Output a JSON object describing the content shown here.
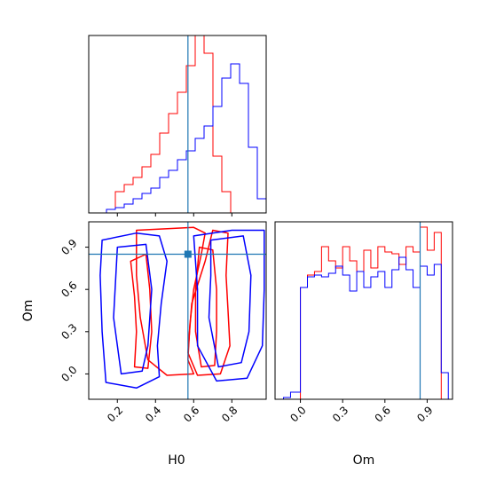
{
  "chart_data": {
    "type": "corner",
    "colors": {
      "sample_a": "#ff0000",
      "sample_b": "#0000ff",
      "truth": "#1f77b4",
      "axes": "#000000"
    },
    "parameters": [
      "H0",
      "Om"
    ],
    "truth": {
      "H0": 0.57,
      "Om": 0.85
    },
    "panels": [
      {
        "id": "hist-H0",
        "type": "step-histogram",
        "xlim": [
          0.05,
          0.98
        ],
        "ylim": [
          0,
          1
        ],
        "x_ticks": [
          0.2,
          0.4,
          0.6,
          0.8
        ],
        "x_tick_labels": [],
        "series": [
          {
            "color": "#ff0000",
            "edges": [
              0.05,
              0.0965,
              0.143,
              0.1895,
              0.236,
              0.2825,
              0.329,
              0.3755,
              0.422,
              0.4685,
              0.515,
              0.5615,
              0.608,
              0.6545,
              0.701,
              0.7475,
              0.794,
              0.8405,
              0.887,
              0.9335,
              0.98
            ],
            "heights": [
              0,
              0,
              0.02,
              0.12,
              0.16,
              0.2,
              0.26,
              0.33,
              0.45,
              0.56,
              0.68,
              0.83,
              1.0,
              0.9,
              0.32,
              0.12,
              0.0,
              0,
              0,
              0
            ]
          },
          {
            "color": "#0000ff",
            "edges": [
              0.05,
              0.0965,
              0.143,
              0.1895,
              0.236,
              0.2825,
              0.329,
              0.3755,
              0.422,
              0.4685,
              0.515,
              0.5615,
              0.608,
              0.6545,
              0.701,
              0.7475,
              0.794,
              0.8405,
              0.887,
              0.9335,
              0.98
            ],
            "heights": [
              0,
              0,
              0.02,
              0.03,
              0.05,
              0.08,
              0.11,
              0.14,
              0.2,
              0.24,
              0.3,
              0.35,
              0.42,
              0.49,
              0.6,
              0.76,
              0.84,
              0.73,
              0.37,
              0.08
            ]
          }
        ]
      },
      {
        "id": "contour-H0-Om",
        "type": "contour",
        "xlim": [
          0.05,
          0.98
        ],
        "ylim": [
          -0.18,
          1.08
        ],
        "x_ticks": [
          0.2,
          0.4,
          0.6,
          0.8
        ],
        "x_tick_labels": [
          "0.2",
          "0.4",
          "0.6",
          "0.8"
        ],
        "y_ticks": [
          0.0,
          0.3,
          0.6,
          0.9
        ],
        "y_tick_labels": [
          "0.0",
          "0.3",
          "0.6",
          "0.9"
        ],
        "xlabel": "H0",
        "ylabel": "Om",
        "series": [
          {
            "color": "#ff0000",
            "contours": [
              [
                [
                  0.3,
                  1.02
                ],
                [
                  0.6,
                  1.04
                ],
                [
                  0.66,
                  1.0
                ],
                [
                  0.64,
                  0.85
                ],
                [
                  0.6,
                  0.6
                ],
                [
                  0.58,
                  0.35
                ],
                [
                  0.57,
                  0.1
                ],
                [
                  0.6,
                  0.0
                ],
                [
                  0.46,
                  -0.01
                ],
                [
                  0.36,
                  0.1
                ],
                [
                  0.32,
                  0.4
                ],
                [
                  0.3,
                  0.7
                ]
              ],
              [
                [
                  0.7,
                  1.02
                ],
                [
                  0.78,
                  1.0
                ],
                [
                  0.77,
                  0.7
                ],
                [
                  0.78,
                  0.45
                ],
                [
                  0.79,
                  0.2
                ],
                [
                  0.74,
                  0.0
                ],
                [
                  0.62,
                  -0.01
                ],
                [
                  0.57,
                  0.15
                ],
                [
                  0.59,
                  0.5
                ],
                [
                  0.66,
                  0.8
                ]
              ],
              [
                [
                  0.27,
                  0.8
                ],
                [
                  0.29,
                  0.55
                ],
                [
                  0.3,
                  0.3
                ],
                [
                  0.29,
                  0.05
                ],
                [
                  0.36,
                  0.04
                ],
                [
                  0.38,
                  0.3
                ],
                [
                  0.37,
                  0.6
                ],
                [
                  0.35,
                  0.85
                ]
              ],
              [
                [
                  0.63,
                  0.9
                ],
                [
                  0.7,
                  0.88
                ],
                [
                  0.72,
                  0.6
                ],
                [
                  0.72,
                  0.3
                ],
                [
                  0.71,
                  0.06
                ],
                [
                  0.64,
                  0.05
                ],
                [
                  0.61,
                  0.3
                ],
                [
                  0.61,
                  0.6
                ]
              ]
            ]
          },
          {
            "color": "#0000ff",
            "contours": [
              [
                [
                  0.12,
                  0.95
                ],
                [
                  0.3,
                  1.0
                ],
                [
                  0.42,
                  0.98
                ],
                [
                  0.46,
                  0.8
                ],
                [
                  0.43,
                  0.5
                ],
                [
                  0.41,
                  0.2
                ],
                [
                  0.42,
                  -0.02
                ],
                [
                  0.3,
                  -0.1
                ],
                [
                  0.14,
                  -0.06
                ],
                [
                  0.12,
                  0.3
                ],
                [
                  0.11,
                  0.7
                ]
              ],
              [
                [
                  0.6,
                  0.98
                ],
                [
                  0.8,
                  1.02
                ],
                [
                  0.97,
                  1.02
                ],
                [
                  0.97,
                  0.6
                ],
                [
                  0.96,
                  0.2
                ],
                [
                  0.88,
                  -0.03
                ],
                [
                  0.72,
                  -0.05
                ],
                [
                  0.62,
                  0.2
                ],
                [
                  0.62,
                  0.6
                ]
              ],
              [
                [
                  0.2,
                  0.9
                ],
                [
                  0.35,
                  0.92
                ],
                [
                  0.38,
                  0.6
                ],
                [
                  0.36,
                  0.2
                ],
                [
                  0.33,
                  0.02
                ],
                [
                  0.22,
                  0.0
                ],
                [
                  0.18,
                  0.4
                ]
              ],
              [
                [
                  0.69,
                  0.95
                ],
                [
                  0.86,
                  0.98
                ],
                [
                  0.9,
                  0.7
                ],
                [
                  0.89,
                  0.3
                ],
                [
                  0.85,
                  0.08
                ],
                [
                  0.73,
                  0.05
                ],
                [
                  0.68,
                  0.4
                ],
                [
                  0.69,
                  0.7
                ]
              ]
            ]
          }
        ]
      },
      {
        "id": "hist-Om",
        "type": "step-histogram",
        "xlim": [
          -0.18,
          1.08
        ],
        "ylim": [
          0,
          1
        ],
        "x_ticks": [
          0.0,
          0.3,
          0.6,
          0.9
        ],
        "x_tick_labels": [
          "0.0",
          "0.3",
          "0.6",
          "0.9"
        ],
        "xlabel": "Om",
        "series": [
          {
            "color": "#ff0000",
            "edges": [
              0.0,
              0.05,
              0.1,
              0.15,
              0.2,
              0.25,
              0.3,
              0.35,
              0.4,
              0.45,
              0.5,
              0.55,
              0.6,
              0.65,
              0.7,
              0.75,
              0.8,
              0.85,
              0.9,
              0.95,
              1.0
            ],
            "heights": [
              0.63,
              0.7,
              0.72,
              0.86,
              0.78,
              0.74,
              0.86,
              0.78,
              0.72,
              0.84,
              0.74,
              0.86,
              0.83,
              0.82,
              0.76,
              0.86,
              0.83,
              0.97,
              0.84,
              0.94
            ]
          },
          {
            "color": "#0000ff",
            "edges": [
              -0.12,
              -0.07,
              0.0,
              0.05,
              0.1,
              0.15,
              0.2,
              0.25,
              0.3,
              0.35,
              0.4,
              0.45,
              0.5,
              0.55,
              0.6,
              0.65,
              0.7,
              0.75,
              0.8,
              0.85,
              0.9,
              0.95,
              1.0,
              1.05
            ],
            "heights": [
              0.01,
              0.04,
              0.63,
              0.69,
              0.7,
              0.69,
              0.71,
              0.75,
              0.7,
              0.61,
              0.72,
              0.63,
              0.69,
              0.72,
              0.63,
              0.73,
              0.8,
              0.73,
              0.63,
              0.75,
              0.7,
              0.76,
              0.15
            ]
          }
        ]
      }
    ]
  }
}
